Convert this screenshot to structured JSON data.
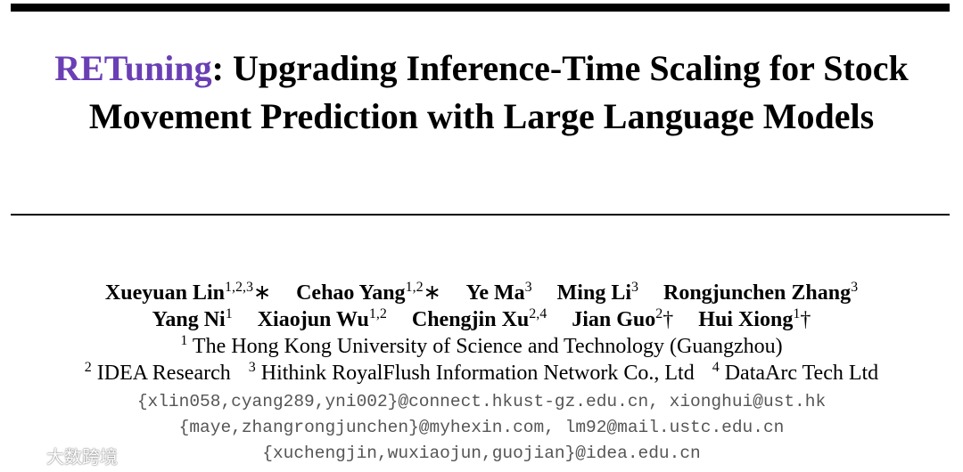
{
  "title": {
    "highlight": "RETuning",
    "rest": ": Upgrading Inference-Time Scaling for Stock Movement Prediction with Large Language Models"
  },
  "authors": {
    "rows": [
      [
        {
          "name": "Xueyuan Lin",
          "affiliations": "1,2,3",
          "note": "∗"
        },
        {
          "name": "Cehao Yang",
          "affiliations": "1,2",
          "note": "∗"
        },
        {
          "name": "Ye Ma",
          "affiliations": "3"
        },
        {
          "name": "Ming Li",
          "affiliations": "3"
        },
        {
          "name": "Rongjunchen Zhang",
          "affiliations": "3"
        }
      ],
      [
        {
          "name": "Yang Ni",
          "affiliations": "1"
        },
        {
          "name": "Xiaojun Wu",
          "affiliations": "1,2"
        },
        {
          "name": "Chengjin Xu",
          "affiliations": "2,4"
        },
        {
          "name": "Jian Guo",
          "affiliations": "2",
          "note": "†"
        },
        {
          "name": "Hui Xiong",
          "affiliations": "1",
          "note": "†"
        }
      ]
    ]
  },
  "institutions": {
    "rows": [
      [
        {
          "number": "1",
          "name": "The Hong Kong University of Science and Technology (Guangzhou)"
        }
      ],
      [
        {
          "number": "2",
          "name": "IDEA Research"
        },
        {
          "number": "3",
          "name": "Hithink RoyalFlush Information Network Co., Ltd"
        },
        {
          "number": "4",
          "name": "DataArc Tech Ltd"
        }
      ]
    ]
  },
  "emails": [
    "{xlin058,cyang289,yni002}@connect.hkust-gz.edu.cn, xionghui@ust.hk",
    "{maye,zhangrongjunchen}@myhexin.com, lm92@mail.ustc.edu.cn",
    "{xuchengjin,wuxiaojun,guojian}@idea.edu.cn"
  ],
  "watermark": "大数跨境"
}
